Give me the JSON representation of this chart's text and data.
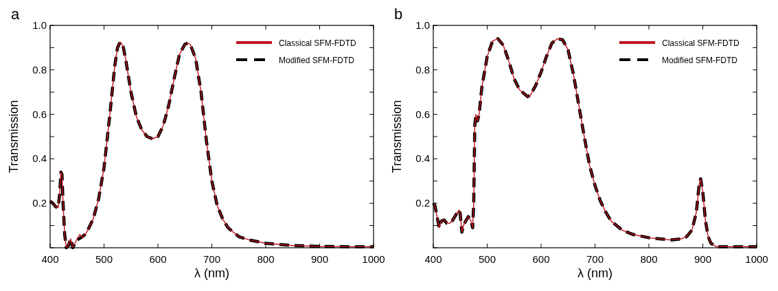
{
  "chart_data": [
    {
      "type": "line",
      "title": "a",
      "xlabel": "λ (nm)",
      "ylabel": "Transmission",
      "xlim": [
        400,
        1000
      ],
      "xticks": [
        400,
        500,
        600,
        700,
        800,
        900,
        1000
      ],
      "ylim": [
        0,
        1
      ],
      "yticks": [
        {
          "value": 0,
          "label": null
        },
        {
          "value": 0.1,
          "label": null
        },
        0.2,
        {
          "value": 0.3,
          "label": null
        },
        0.4,
        {
          "value": 0.5,
          "label": null
        },
        0.6,
        {
          "value": 0.7,
          "label": null
        },
        0.8,
        {
          "value": 0.9,
          "label": null
        },
        {
          "value": 1,
          "label": "1.0"
        }
      ],
      "legend": "top right",
      "marker": "none",
      "grid": false,
      "series": [
        {
          "name": "Classical SFM-FDTD",
          "color": "#c0121e",
          "line_style": "solid",
          "x": [
            400,
            405,
            410,
            415,
            418,
            420,
            422,
            424,
            427,
            430,
            434,
            438,
            442,
            446,
            450,
            455,
            460,
            465,
            470,
            480,
            490,
            500,
            510,
            520,
            525,
            530,
            535,
            540,
            550,
            560,
            570,
            580,
            590,
            600,
            610,
            620,
            630,
            640,
            650,
            655,
            660,
            670,
            680,
            690,
            700,
            710,
            720,
            730,
            750,
            770,
            800,
            850,
            900,
            950,
            1000
          ],
          "values": [
            0.21,
            0.2,
            0.185,
            0.18,
            0.25,
            0.34,
            0.33,
            0.2,
            0.06,
            0.0,
            0.01,
            0.04,
            0.0,
            0.02,
            0.04,
            0.06,
            0.045,
            0.06,
            0.08,
            0.13,
            0.22,
            0.36,
            0.58,
            0.82,
            0.9,
            0.925,
            0.91,
            0.85,
            0.7,
            0.59,
            0.53,
            0.5,
            0.49,
            0.5,
            0.55,
            0.64,
            0.76,
            0.87,
            0.915,
            0.92,
            0.915,
            0.85,
            0.7,
            0.48,
            0.3,
            0.19,
            0.13,
            0.09,
            0.05,
            0.035,
            0.02,
            0.01,
            0.006,
            0.005,
            0.005
          ]
        },
        {
          "name": "Modified SFM-FDTD",
          "color": "#000000",
          "line_style": "dashed",
          "x": [
            400,
            405,
            410,
            415,
            418,
            420,
            422,
            424,
            427,
            430,
            434,
            438,
            442,
            446,
            450,
            460,
            465,
            470,
            480,
            490,
            500,
            510,
            520,
            525,
            530,
            535,
            540,
            550,
            560,
            570,
            580,
            590,
            600,
            610,
            620,
            630,
            640,
            650,
            655,
            660,
            670,
            680,
            690,
            700,
            710,
            720,
            730,
            750,
            770,
            800,
            850,
            900,
            950,
            1000
          ],
          "values": [
            0.21,
            0.2,
            0.185,
            0.18,
            0.25,
            0.34,
            0.33,
            0.2,
            0.06,
            0.0,
            0.01,
            0.04,
            0.0,
            0.02,
            0.035,
            0.05,
            0.06,
            0.08,
            0.13,
            0.22,
            0.36,
            0.58,
            0.82,
            0.9,
            0.925,
            0.91,
            0.85,
            0.7,
            0.59,
            0.53,
            0.5,
            0.49,
            0.5,
            0.55,
            0.64,
            0.76,
            0.87,
            0.915,
            0.92,
            0.915,
            0.85,
            0.7,
            0.48,
            0.3,
            0.19,
            0.13,
            0.09,
            0.05,
            0.035,
            0.02,
            0.01,
            0.006,
            0.005,
            0.005
          ]
        }
      ]
    },
    {
      "type": "line",
      "title": "b",
      "xlabel": "λ (nm)",
      "ylabel": "Transmission",
      "xlim": [
        400,
        1000
      ],
      "xticks": [
        400,
        500,
        600,
        700,
        800,
        900,
        1000
      ],
      "ylim": [
        0,
        1
      ],
      "yticks": [
        {
          "value": 0,
          "label": null
        },
        {
          "value": 0.1,
          "label": null
        },
        0.2,
        {
          "value": 0.3,
          "label": null
        },
        0.4,
        {
          "value": 0.5,
          "label": null
        },
        0.6,
        {
          "value": 0.7,
          "label": null
        },
        0.8,
        {
          "value": 0.9,
          "label": null
        },
        {
          "value": 1,
          "label": "1.0"
        }
      ],
      "legend": "top right",
      "marker": "none",
      "grid": false,
      "series": [
        {
          "name": "Classical SFM-FDTD",
          "color": "#c0121e",
          "line_style": "solid",
          "x": [
            400,
            403,
            407,
            411,
            415,
            420,
            425,
            430,
            435,
            440,
            445,
            448,
            450,
            453,
            456,
            460,
            465,
            470,
            473,
            475,
            477,
            479,
            482,
            485,
            490,
            500,
            510,
            520,
            530,
            540,
            550,
            560,
            575,
            580,
            590,
            600,
            610,
            620,
            630,
            640,
            650,
            660,
            670,
            680,
            690,
            700,
            710,
            720,
            730,
            750,
            770,
            800,
            820,
            840,
            860,
            870,
            880,
            888,
            893,
            896,
            900,
            905,
            910,
            915,
            925,
            1000
          ],
          "values": [
            0.2,
            0.19,
            0.14,
            0.09,
            0.12,
            0.125,
            0.11,
            0.11,
            0.12,
            0.14,
            0.16,
            0.17,
            0.15,
            0.07,
            0.1,
            0.12,
            0.14,
            0.12,
            0.09,
            0.2,
            0.55,
            0.6,
            0.57,
            0.6,
            0.72,
            0.86,
            0.93,
            0.94,
            0.91,
            0.84,
            0.76,
            0.71,
            0.68,
            0.685,
            0.73,
            0.79,
            0.86,
            0.92,
            0.94,
            0.935,
            0.89,
            0.78,
            0.64,
            0.5,
            0.37,
            0.28,
            0.21,
            0.16,
            0.12,
            0.08,
            0.06,
            0.045,
            0.04,
            0.035,
            0.04,
            0.05,
            0.08,
            0.16,
            0.28,
            0.31,
            0.25,
            0.12,
            0.05,
            0.02,
            0.005,
            0.005
          ]
        },
        {
          "name": "Modified SFM-FDTD",
          "color": "#000000",
          "line_style": "dashed",
          "x": [
            400,
            403,
            407,
            411,
            415,
            420,
            425,
            430,
            435,
            440,
            445,
            448,
            450,
            453,
            456,
            460,
            465,
            470,
            473,
            475,
            477,
            479,
            482,
            485,
            490,
            500,
            510,
            520,
            530,
            540,
            550,
            560,
            575,
            580,
            590,
            600,
            610,
            620,
            630,
            640,
            650,
            660,
            670,
            680,
            690,
            700,
            710,
            720,
            730,
            750,
            770,
            800,
            820,
            840,
            860,
            870,
            880,
            888,
            893,
            896,
            900,
            905,
            910,
            915,
            925,
            1000
          ],
          "values": [
            0.2,
            0.19,
            0.14,
            0.09,
            0.12,
            0.125,
            0.11,
            0.11,
            0.12,
            0.14,
            0.16,
            0.17,
            0.15,
            0.07,
            0.1,
            0.12,
            0.14,
            0.12,
            0.09,
            0.2,
            0.55,
            0.6,
            0.57,
            0.6,
            0.72,
            0.86,
            0.93,
            0.94,
            0.91,
            0.84,
            0.76,
            0.71,
            0.68,
            0.685,
            0.73,
            0.79,
            0.86,
            0.92,
            0.94,
            0.935,
            0.89,
            0.78,
            0.64,
            0.5,
            0.37,
            0.28,
            0.21,
            0.16,
            0.12,
            0.08,
            0.06,
            0.045,
            0.04,
            0.035,
            0.04,
            0.05,
            0.08,
            0.16,
            0.28,
            0.31,
            0.25,
            0.12,
            0.05,
            0.02,
            0.005,
            0.005
          ]
        }
      ]
    }
  ]
}
